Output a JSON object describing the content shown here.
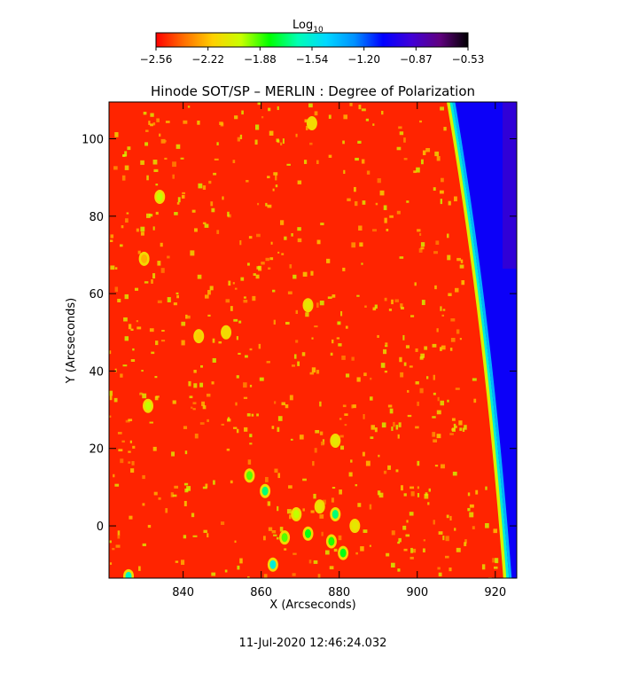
{
  "chart_data": {
    "type": "heatmap",
    "title": "Hinode SOT/SP – MERLIN : Degree of Polarization",
    "xlabel": "X (Arcseconds)",
    "ylabel": "Y (Arcseconds)",
    "xlim": [
      821,
      925.5
    ],
    "ylim": [
      -13.5,
      109.5
    ],
    "xticks": [
      840,
      860,
      880,
      900,
      920
    ],
    "yticks": [
      0,
      20,
      40,
      60,
      80,
      100
    ],
    "colorbar": {
      "label_main": "Log",
      "label_sub": "10",
      "range": [
        -2.56,
        -0.53
      ],
      "ticks": [
        "−2.56",
        "−2.22",
        "−1.88",
        "−1.54",
        "−1.20",
        "−0.87",
        "−0.53"
      ],
      "colormap": [
        "#ff0000",
        "#ff7000",
        "#ffd000",
        "#c8ff00",
        "#00ff00",
        "#00ffb4",
        "#00d8ff",
        "#0090ff",
        "#0000ff",
        "#4000d8",
        "#600080",
        "#000000"
      ]
    },
    "limb_x_at_top": 908,
    "limb_x_at_bottom": 922.5,
    "disk_level": -2.5,
    "offlimb_level": -1.05,
    "bright_patches": [
      {
        "x": 863,
        "y": -10,
        "level": -1.55
      },
      {
        "x": 866,
        "y": -3,
        "level": -1.9
      },
      {
        "x": 869,
        "y": 3,
        "level": -2.0
      },
      {
        "x": 872,
        "y": -2,
        "level": -1.8
      },
      {
        "x": 875,
        "y": 5,
        "level": -2.1
      },
      {
        "x": 878,
        "y": -4,
        "level": -1.85
      },
      {
        "x": 881,
        "y": -7,
        "level": -1.8
      },
      {
        "x": 879,
        "y": 3,
        "level": -1.7
      },
      {
        "x": 884,
        "y": 0,
        "level": -2.1
      },
      {
        "x": 857,
        "y": 13,
        "level": -1.9
      },
      {
        "x": 861,
        "y": 9,
        "level": -1.7
      },
      {
        "x": 831,
        "y": 31,
        "level": -2.0
      },
      {
        "x": 826,
        "y": -13,
        "level": -1.6
      },
      {
        "x": 872,
        "y": 57,
        "level": -2.1
      },
      {
        "x": 834,
        "y": 85,
        "level": -2.0
      },
      {
        "x": 879,
        "y": 22,
        "level": -2.1
      },
      {
        "x": 873,
        "y": 104,
        "level": -2.15
      },
      {
        "x": 851,
        "y": 50,
        "level": -2.15
      },
      {
        "x": 844,
        "y": 49,
        "level": -2.2
      },
      {
        "x": 830,
        "y": 69,
        "level": -2.25
      }
    ]
  },
  "timestamp": "11-Jul-2020 12:46:24.032"
}
